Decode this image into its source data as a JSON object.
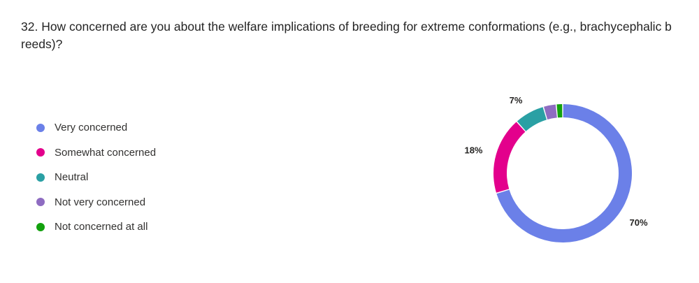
{
  "question": {
    "text": "32. How concerned are you about the welfare implications of breeding for extreme conformations (e.g., brachycephalic b reeds)?"
  },
  "chart_data": {
    "type": "pie",
    "donut": true,
    "categories": [
      "Very concerned",
      "Somewhat concerned",
      "Neutral",
      "Not very concerned",
      "Not concerned at all"
    ],
    "values": [
      70,
      18,
      7,
      3,
      1.5
    ],
    "labels": [
      "70%",
      "18%",
      "7%",
      "",
      ""
    ],
    "colors": [
      "#6b80e8",
      "#e3008c",
      "#2aa0a4",
      "#8e6cc1",
      "#13a10e"
    ],
    "legend_position": "left"
  }
}
